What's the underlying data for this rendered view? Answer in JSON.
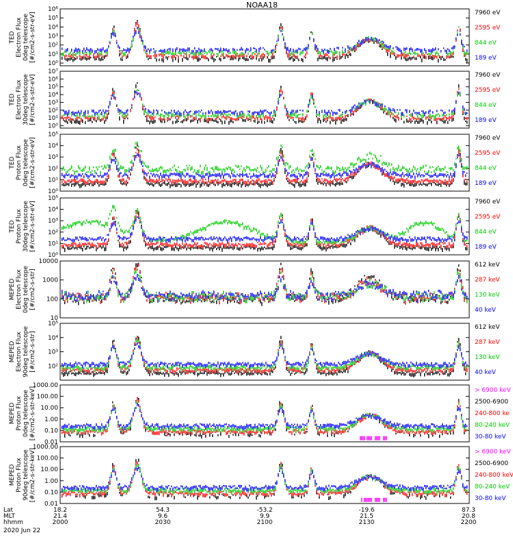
{
  "title": "NOAA18",
  "colors": {
    "black": "#000000",
    "red": "#ff0000",
    "green": "#00cc00",
    "blue": "#0000ff",
    "magenta": "#ff00ff"
  },
  "footer": {
    "row_labels": [
      "Lat",
      "MLT",
      "hhmm"
    ],
    "date": "2020 Jun 22",
    "columns": [
      {
        "lat": "18.2",
        "mlt": "21.4",
        "hhmm": "2000"
      },
      {
        "lat": "54.3",
        "mlt": "9.6",
        "hhmm": "2030"
      },
      {
        "lat": "-53.2",
        "mlt": "9.9",
        "hhmm": "2100"
      },
      {
        "lat": "-19.6",
        "mlt": "21.5",
        "hhmm": "2130"
      },
      {
        "lat": "87.3",
        "mlt": "20.8",
        "hhmm": "2200"
      }
    ]
  },
  "chart_data": [
    {
      "type": "scatter",
      "ylabel": [
        "TED",
        "Electron Flux",
        "0deg telescope",
        "[#/cm2-s-str-eV]"
      ],
      "scale": "log",
      "ylim": [
        0.5,
        1000000
      ],
      "yticks": [
        {
          "v": 1,
          "t": "10⁰"
        },
        {
          "v": 10,
          "t": "10¹"
        },
        {
          "v": 100,
          "t": "10²"
        },
        {
          "v": 1000,
          "t": "10³"
        },
        {
          "v": 10000,
          "t": "10⁴"
        },
        {
          "v": 100000,
          "t": "10⁵"
        },
        {
          "v": 1000000,
          "t": "10⁶"
        }
      ],
      "legend": [
        {
          "label": "7960 eV",
          "color": "black"
        },
        {
          "label": "2595 eV",
          "color": "red"
        },
        {
          "label": "844 eV",
          "color": "green"
        },
        {
          "label": "189 eV",
          "color": "blue"
        }
      ]
    },
    {
      "type": "scatter",
      "ylabel": [
        "TED",
        "Electron Flux",
        "30deg telescope",
        "[#/cm2-s-str-eV]"
      ],
      "scale": "log",
      "ylim": [
        0.5,
        10000000
      ],
      "yticks": [
        {
          "v": 1,
          "t": "10⁰"
        },
        {
          "v": 10,
          "t": "10¹"
        },
        {
          "v": 100,
          "t": "10²"
        },
        {
          "v": 1000,
          "t": "10³"
        },
        {
          "v": 10000,
          "t": "10⁴"
        },
        {
          "v": 100000,
          "t": "10⁵"
        },
        {
          "v": 1000000,
          "t": "10⁶"
        },
        {
          "v": 10000000,
          "t": "10⁷"
        }
      ],
      "legend": [
        {
          "label": "7960 eV",
          "color": "black"
        },
        {
          "label": "2595 eV",
          "color": "red"
        },
        {
          "label": "844 eV",
          "color": "green"
        },
        {
          "label": "189 eV",
          "color": "blue"
        }
      ]
    },
    {
      "type": "scatter",
      "ylabel": [
        "TED",
        "Proton Flux",
        "0deg telescope",
        "[#/cm2-s-str-eV]"
      ],
      "scale": "log",
      "ylim": [
        1,
        100000
      ],
      "yticks": [
        {
          "v": 1,
          "t": "10⁰"
        },
        {
          "v": 10,
          "t": "10¹"
        },
        {
          "v": 100,
          "t": "10²"
        },
        {
          "v": 1000,
          "t": "10³"
        },
        {
          "v": 10000,
          "t": "10⁴"
        },
        {
          "v": 100000,
          "t": "10⁵"
        }
      ],
      "legend": [
        {
          "label": "7960 eV",
          "color": "black"
        },
        {
          "label": "2595 eV",
          "color": "red"
        },
        {
          "label": "844 eV",
          "color": "green"
        },
        {
          "label": "189 eV",
          "color": "blue"
        }
      ]
    },
    {
      "type": "scatter",
      "ylabel": [
        "TED",
        "Proton Flux",
        "30deg telescope",
        "[#/cm2-s-str-eV]"
      ],
      "scale": "log",
      "ylim": [
        1,
        100000
      ],
      "yticks": [
        {
          "v": 1,
          "t": "10⁰"
        },
        {
          "v": 10,
          "t": "10¹"
        },
        {
          "v": 100,
          "t": "10²"
        },
        {
          "v": 1000,
          "t": "10³"
        },
        {
          "v": 10000,
          "t": "10⁴"
        },
        {
          "v": 100000,
          "t": "10⁵"
        }
      ],
      "legend": [
        {
          "label": "7960 eV",
          "color": "black"
        },
        {
          "label": "2595 eV",
          "color": "red"
        },
        {
          "label": "844 eV",
          "color": "green"
        },
        {
          "label": "189 eV",
          "color": "blue"
        }
      ]
    },
    {
      "type": "scatter",
      "ylabel": [
        "MEPED",
        "Electron Flux",
        "0deg telescope",
        "[#/cm2-s-str]"
      ],
      "scale": "log",
      "ylim": [
        10,
        10000
      ],
      "yticks": [
        {
          "v": 10,
          "t": "10"
        },
        {
          "v": 100,
          "t": "100"
        },
        {
          "v": 1000,
          "t": "1000"
        },
        {
          "v": 10000,
          "t": "10000"
        }
      ],
      "legend": [
        {
          "label": "612 keV",
          "color": "black"
        },
        {
          "label": "287 keV",
          "color": "red"
        },
        {
          "label": "130 keV",
          "color": "green"
        },
        {
          "label": "40 keV",
          "color": "blue"
        }
      ]
    },
    {
      "type": "scatter",
      "ylabel": [
        "MEPED",
        "Electron Flux",
        "90deg telescope",
        "[#/cm2-s-str]"
      ],
      "scale": "log",
      "ylim": [
        10,
        100000
      ],
      "yticks": [
        {
          "v": 100,
          "t": "10²"
        },
        {
          "v": 1000,
          "t": "10³"
        },
        {
          "v": 10000,
          "t": "10⁴"
        },
        {
          "v": 100000,
          "t": "10⁵"
        }
      ],
      "legend": [
        {
          "label": "612 keV",
          "color": "black"
        },
        {
          "label": "287 keV",
          "color": "red"
        },
        {
          "label": "130 keV",
          "color": "green"
        },
        {
          "label": "40 keV",
          "color": "blue"
        }
      ]
    },
    {
      "type": "scatter",
      "ylabel": [
        "MEPED",
        "Proton Flux",
        "0deg telescope",
        "[#/cm2-s-str-keV]"
      ],
      "scale": "log",
      "ylim": [
        0.01,
        1000
      ],
      "yticks": [
        {
          "v": 0.01,
          "t": "0.01"
        },
        {
          "v": 0.1,
          "t": "0.10"
        },
        {
          "v": 1,
          "t": "1.00"
        },
        {
          "v": 10,
          "t": "10.00"
        },
        {
          "v": 100,
          "t": "100.00"
        },
        {
          "v": 1000,
          "t": "1000.00"
        }
      ],
      "legend": [
        {
          "label": "> 6900 keV",
          "color": "magenta"
        },
        {
          "label": "2500-6900",
          "color": "black"
        },
        {
          "label": "240-800 ke",
          "color": "red"
        },
        {
          "label": "80-240 keV",
          "color": "green"
        },
        {
          "label": "30-80 keV",
          "color": "blue"
        }
      ]
    },
    {
      "type": "scatter",
      "ylabel": [
        "MEPED",
        "Proton Flux",
        "90deg telescope",
        "[#/cm2-s-str-keV]"
      ],
      "scale": "log",
      "ylim": [
        0.01,
        1000
      ],
      "yticks": [
        {
          "v": 0.01,
          "t": "0.01"
        },
        {
          "v": 0.1,
          "t": "0.10"
        },
        {
          "v": 1,
          "t": "1.00"
        },
        {
          "v": 10,
          "t": "10.00"
        },
        {
          "v": 100,
          "t": "100.00"
        },
        {
          "v": 1000,
          "t": "1000.00"
        }
      ],
      "legend": [
        {
          "label": "> 6900 keV",
          "color": "magenta"
        },
        {
          "label": "2500-6900",
          "color": "black"
        },
        {
          "label": "240-800 keV",
          "color": "red"
        },
        {
          "label": "80-240 keV",
          "color": "green"
        },
        {
          "label": "30-80 keV",
          "color": "blue"
        }
      ]
    }
  ]
}
